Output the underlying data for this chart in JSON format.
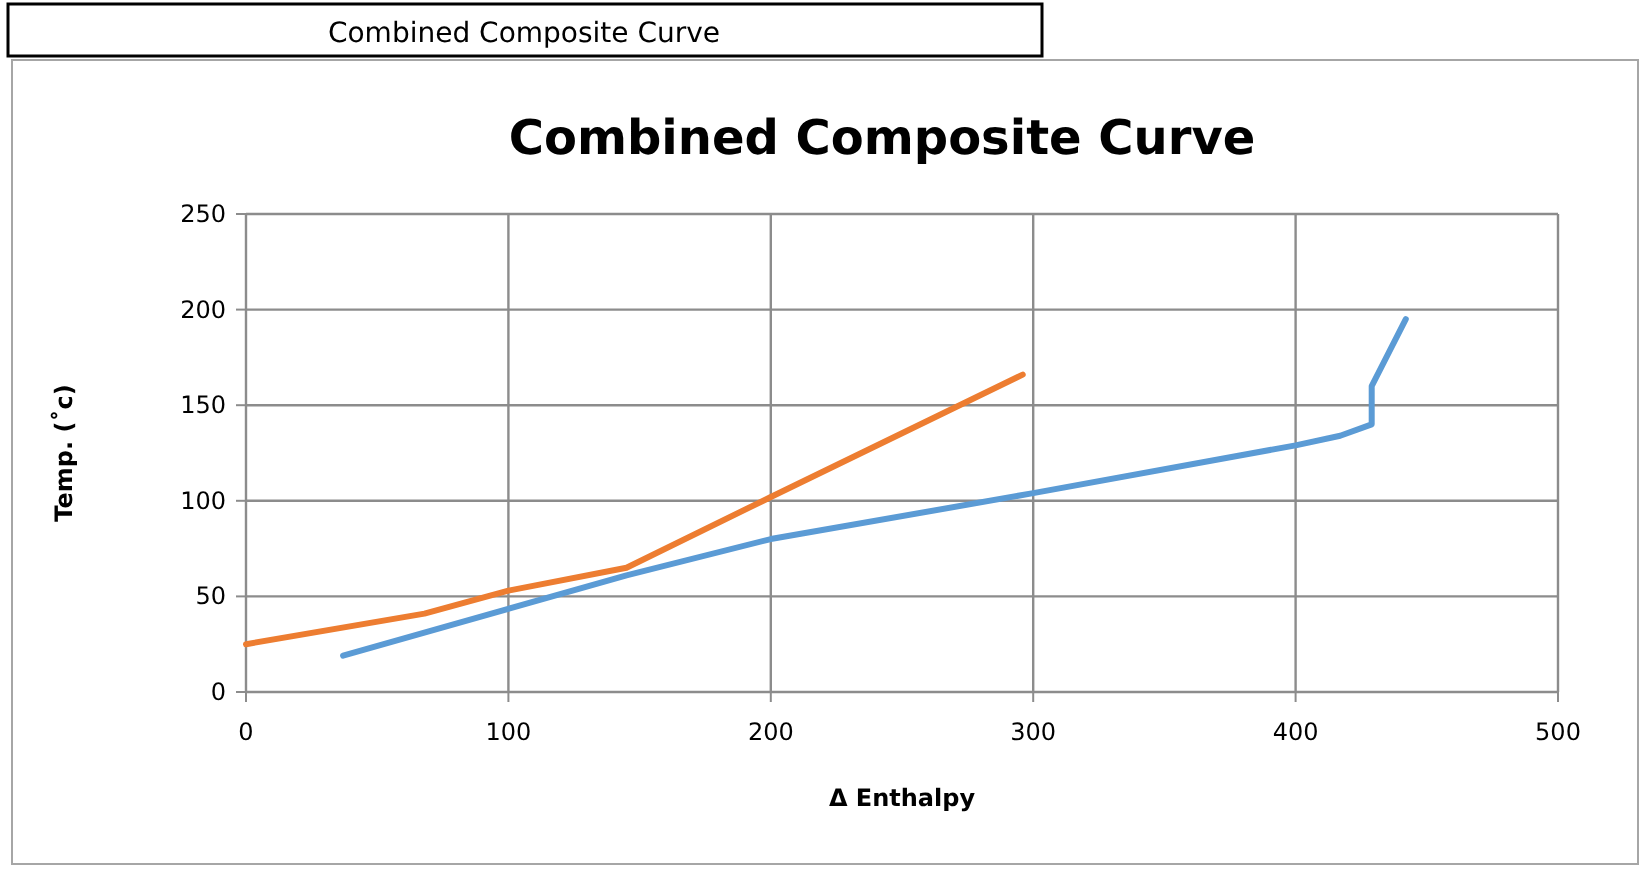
{
  "chart_data": {
    "type": "line",
    "title": "Combined Composite Curve",
    "xlabel": "Δ Enthalpy",
    "ylabel": "Temp. (˚c)",
    "annotations": [
      "Combined Composite Curve"
    ],
    "series": [
      {
        "color": "#5b9bd5",
        "x": [
          37,
          145,
          200,
          300,
          400,
          417,
          429,
          429,
          442
        ],
        "values": [
          19,
          61,
          80,
          104,
          129,
          134,
          140,
          160,
          195
        ]
      },
      {
        "color": "#ed7d31",
        "x": [
          0,
          68,
          100,
          145,
          200,
          296
        ],
        "values": [
          25,
          41,
          53,
          65,
          102,
          166
        ]
      }
    ],
    "xlim": [
      0,
      500
    ],
    "xticks": [
      0,
      100,
      200,
      300,
      400,
      500
    ],
    "ylim": [
      0,
      250
    ],
    "yticks": [
      0,
      50,
      100,
      150,
      200,
      250
    ],
    "grid": true,
    "marker": "none",
    "line_style": "solid"
  }
}
